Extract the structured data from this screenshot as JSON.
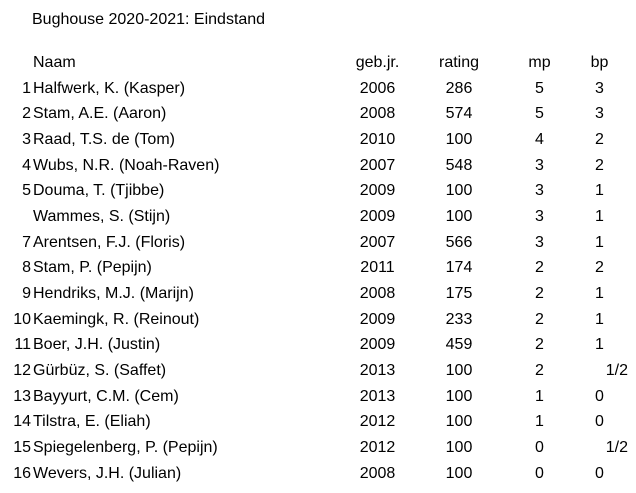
{
  "title": "Bughouse 2020-2021: Eindstand",
  "headers": {
    "rank": "",
    "name": "Naam",
    "year": "geb.jr.",
    "rating": "rating",
    "mp": "mp",
    "bp": "bp"
  },
  "rows": [
    {
      "rank": "1",
      "name": "Halfwerk, K. (Kasper)",
      "year": "2006",
      "rating": "286",
      "mp": "5",
      "bp": "3"
    },
    {
      "rank": "2",
      "name": "Stam, A.E. (Aaron)",
      "year": "2008",
      "rating": "574",
      "mp": "5",
      "bp": "3"
    },
    {
      "rank": "3",
      "name": "Raad, T.S. de (Tom)",
      "year": "2010",
      "rating": "100",
      "mp": "4",
      "bp": "2"
    },
    {
      "rank": "4",
      "name": "Wubs, N.R. (Noah-Raven)",
      "year": "2007",
      "rating": "548",
      "mp": "3",
      "bp": "2"
    },
    {
      "rank": "5",
      "name": "Douma, T. (Tjibbe)",
      "year": "2009",
      "rating": "100",
      "mp": "3",
      "bp": "1"
    },
    {
      "rank": "",
      "name": "Wammes, S. (Stijn)",
      "year": "2009",
      "rating": "100",
      "mp": "3",
      "bp": "1"
    },
    {
      "rank": "7",
      "name": "Arentsen, F.J. (Floris)",
      "year": "2007",
      "rating": "566",
      "mp": "3",
      "bp": "1"
    },
    {
      "rank": "8",
      "name": "Stam, P. (Pepijn)",
      "year": "2011",
      "rating": "174",
      "mp": "2",
      "bp": "2"
    },
    {
      "rank": "9",
      "name": "Hendriks, M.J. (Marijn)",
      "year": "2008",
      "rating": "175",
      "mp": "2",
      "bp": "1"
    },
    {
      "rank": "10",
      "name": "Kaemingk, R. (Reinout)",
      "year": "2009",
      "rating": "233",
      "mp": "2",
      "bp": "1"
    },
    {
      "rank": "11",
      "name": "Boer, J.H. (Justin)",
      "year": "2009",
      "rating": "459",
      "mp": "2",
      "bp": "1"
    },
    {
      "rank": "12",
      "name": "Gürbüz, S. (Saffet)",
      "year": "2013",
      "rating": "100",
      "mp": "2",
      "bp": "1/2"
    },
    {
      "rank": "13",
      "name": "Bayyurt, C.M. (Cem)",
      "year": "2013",
      "rating": "100",
      "mp": "1",
      "bp": "0"
    },
    {
      "rank": "14",
      "name": "Tilstra, E. (Eliah)",
      "year": "2012",
      "rating": "100",
      "mp": "1",
      "bp": "0"
    },
    {
      "rank": "15",
      "name": "Spiegelenberg, P. (Pepijn)",
      "year": "2012",
      "rating": "100",
      "mp": "0",
      "bp": "1/2"
    },
    {
      "rank": "16",
      "name": "Wevers, J.H. (Julian)",
      "year": "2008",
      "rating": "100",
      "mp": "0",
      "bp": "0"
    }
  ]
}
